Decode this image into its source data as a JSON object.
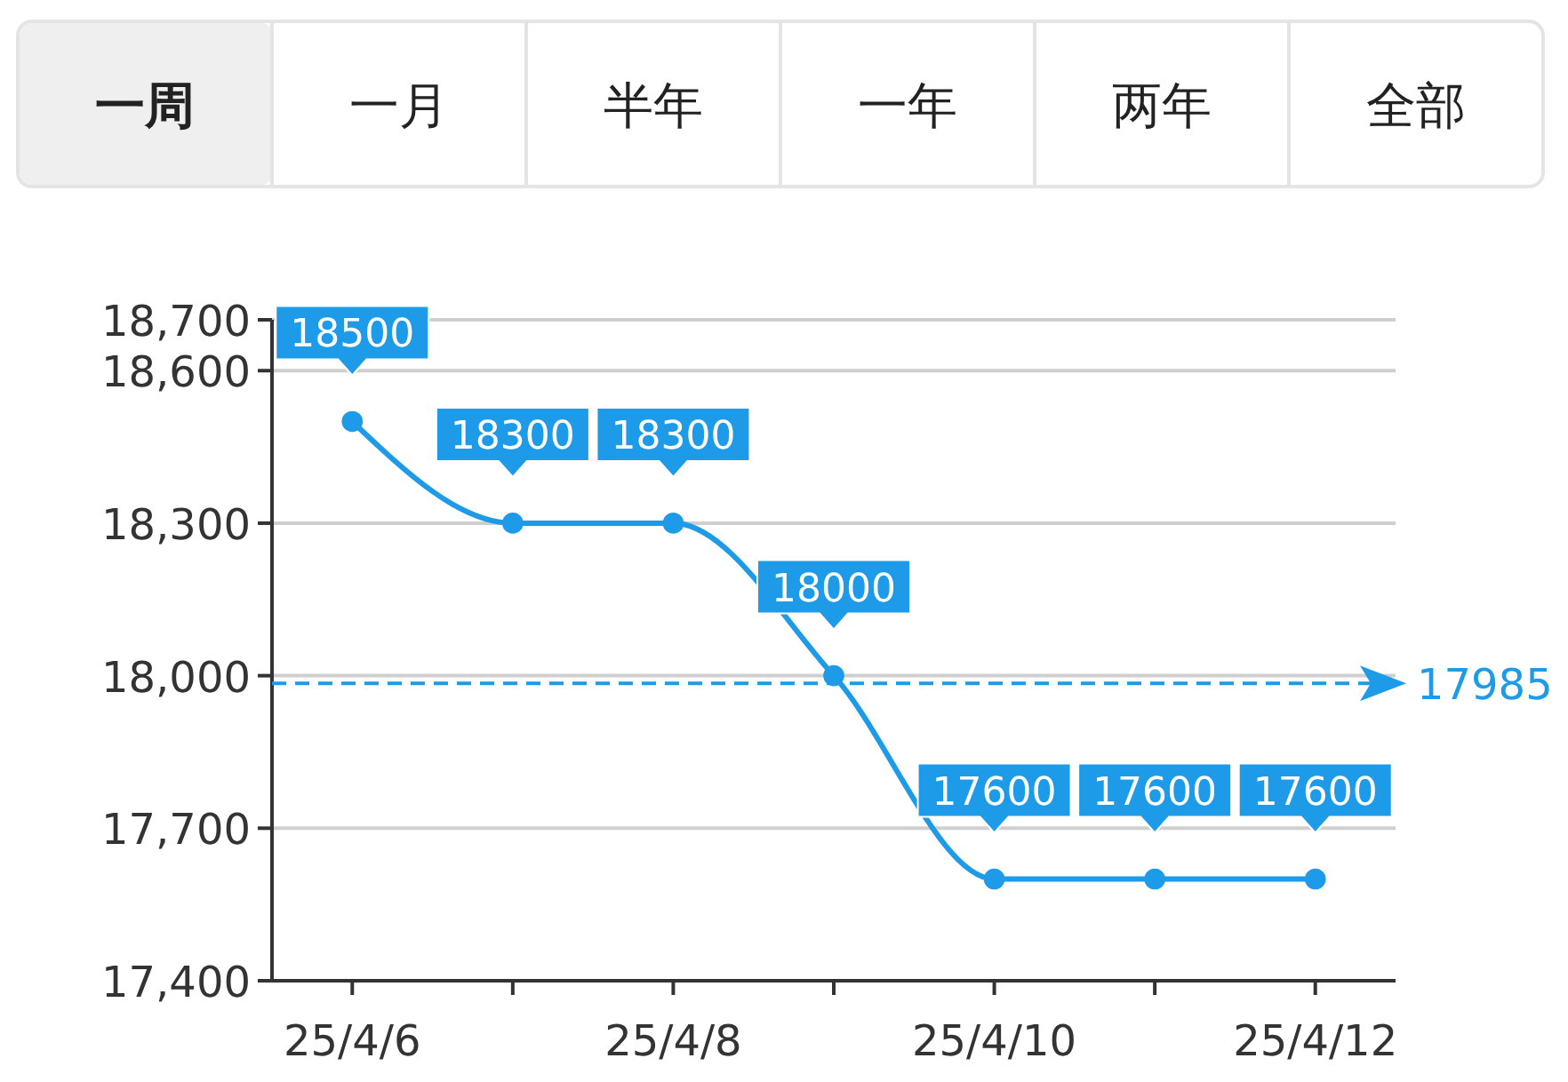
{
  "chart_data": {
    "type": "line",
    "categories": [
      "25/4/6",
      null,
      "25/4/8",
      null,
      "25/4/10",
      null,
      "25/4/12"
    ],
    "series": [
      {
        "color": "#1e9be8",
        "values": [
          18500,
          18300,
          18300,
          18000,
          17600,
          17600,
          17600
        ]
      }
    ],
    "ylim": [
      17400,
      18700
    ],
    "yticks": [
      {
        "value": 17400,
        "label": "17,400"
      },
      {
        "value": 17700,
        "label": "17,700"
      },
      {
        "value": 18000,
        "label": "18,000"
      },
      {
        "value": 18300,
        "label": "18,300"
      },
      {
        "value": 18600,
        "label": "18,600"
      },
      {
        "value": 18700,
        "label": "18,700"
      }
    ],
    "grid": "y",
    "marker": "circle",
    "line_style": "solid",
    "data_labels": true,
    "ref_lines": [
      {
        "axis": "y",
        "value": 17985,
        "label": "17985",
        "color": "#1e9be8",
        "line_style": "dashed"
      }
    ],
    "annotations": [
      "一周",
      "一月",
      "半年",
      "一年",
      "两年",
      "全部"
    ]
  }
}
